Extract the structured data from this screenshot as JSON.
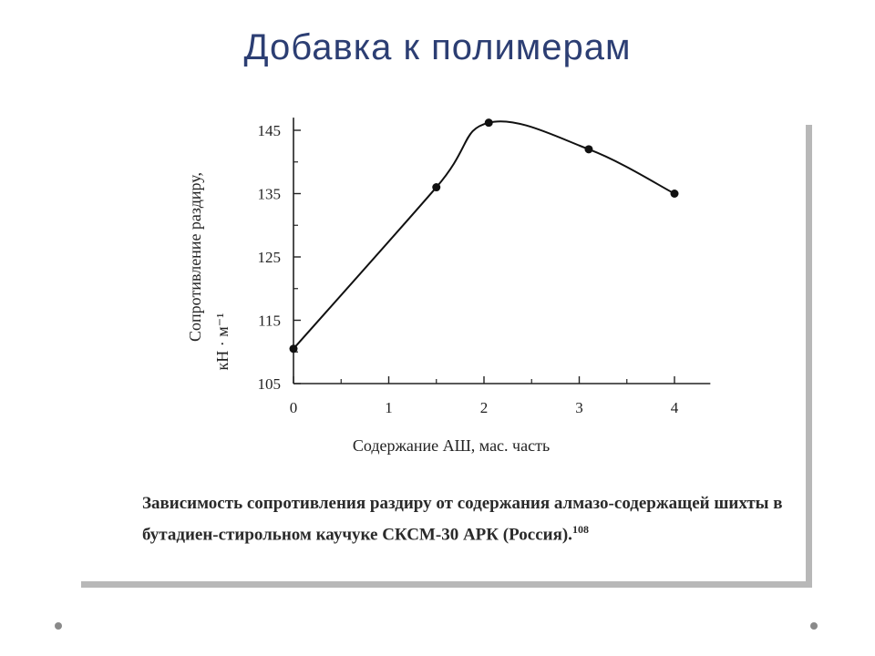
{
  "slide": {
    "title": "Добавка к полимерам"
  },
  "caption": {
    "text": "Зависимость сопротивления раздиру от содержания алмазо-содержащей шихты в бутадиен-стирольном каучуке СКСМ-30 АРК (Россия).",
    "ref": "108"
  },
  "chart_data": {
    "type": "line",
    "title": "",
    "xlabel": "Содержание АШ, мас. часть",
    "ylabel": "Сопротивление раздиру,",
    "ylabel_unit": "кН · м⁻¹",
    "xlim": [
      0,
      4.3
    ],
    "ylim": [
      105,
      147
    ],
    "x_ticks": [
      "0",
      "1",
      "2",
      "3",
      "4"
    ],
    "y_ticks": [
      "105",
      "115",
      "125",
      "135",
      "145"
    ],
    "grid": false,
    "series": [
      {
        "x": [
          0,
          1.5,
          2.05,
          3.1,
          4
        ],
        "y": [
          110.5,
          136,
          146.2,
          142,
          135
        ]
      }
    ]
  }
}
